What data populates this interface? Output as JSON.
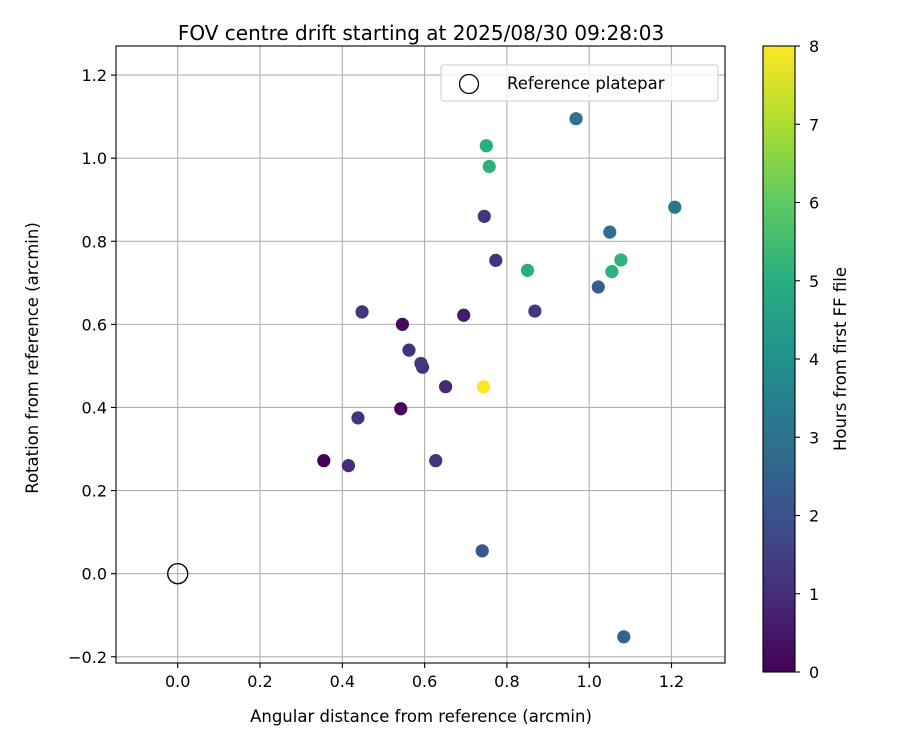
{
  "chart_data": {
    "type": "scatter",
    "title": "FOV centre drift starting at 2025/08/30 09:28:03",
    "xlabel": "Angular distance from reference (arcmin)",
    "ylabel": "Rotation from reference (arcmin)",
    "xlim": [
      -0.15,
      1.33
    ],
    "ylim": [
      -0.215,
      1.27
    ],
    "xticks": [
      0.0,
      0.2,
      0.4,
      0.6,
      0.8,
      1.0,
      1.2
    ],
    "xtick_labels": [
      "0.0",
      "0.2",
      "0.4",
      "0.6",
      "0.8",
      "1.0",
      "1.2"
    ],
    "yticks": [
      -0.2,
      0.0,
      0.2,
      0.4,
      0.6,
      0.8,
      1.0,
      1.2
    ],
    "ytick_labels": [
      "−0.2",
      "0.0",
      "0.2",
      "0.4",
      "0.6",
      "0.8",
      "1.0",
      "1.2"
    ],
    "grid": true,
    "legend": {
      "placement": "top-right",
      "entries": [
        "Reference platepar"
      ]
    },
    "reference_point": {
      "x": 0.0,
      "y": 0.0
    },
    "colorbar": {
      "label": "Hours from first FF file",
      "range": [
        0,
        8
      ],
      "ticks": [
        0,
        1,
        2,
        3,
        4,
        5,
        6,
        7,
        8
      ],
      "tick_labels": [
        "0",
        "1",
        "2",
        "3",
        "4",
        "5",
        "6",
        "7",
        "8"
      ],
      "colormap": "viridis"
    },
    "points": [
      {
        "x": 0.355,
        "y": 0.272,
        "h": 0.0
      },
      {
        "x": 0.542,
        "y": 0.397,
        "h": 0.1
      },
      {
        "x": 0.546,
        "y": 0.6,
        "h": 0.2
      },
      {
        "x": 0.695,
        "y": 0.622,
        "h": 0.6
      },
      {
        "x": 0.415,
        "y": 0.26,
        "h": 1.0
      },
      {
        "x": 0.595,
        "y": 0.497,
        "h": 1.0
      },
      {
        "x": 0.651,
        "y": 0.45,
        "h": 0.9
      },
      {
        "x": 0.438,
        "y": 0.375,
        "h": 1.1
      },
      {
        "x": 0.448,
        "y": 0.63,
        "h": 1.2
      },
      {
        "x": 0.562,
        "y": 0.538,
        "h": 1.1
      },
      {
        "x": 0.591,
        "y": 0.506,
        "h": 1.3
      },
      {
        "x": 0.627,
        "y": 0.272,
        "h": 1.2
      },
      {
        "x": 0.745,
        "y": 0.86,
        "h": 1.2
      },
      {
        "x": 0.773,
        "y": 0.754,
        "h": 1.1
      },
      {
        "x": 0.868,
        "y": 0.632,
        "h": 1.3
      },
      {
        "x": 0.74,
        "y": 0.055,
        "h": 2.2
      },
      {
        "x": 1.022,
        "y": 0.69,
        "h": 2.3
      },
      {
        "x": 1.084,
        "y": -0.152,
        "h": 2.6
      },
      {
        "x": 1.05,
        "y": 0.822,
        "h": 2.8
      },
      {
        "x": 0.968,
        "y": 1.095,
        "h": 3.1
      },
      {
        "x": 1.208,
        "y": 0.882,
        "h": 3.2
      },
      {
        "x": 0.85,
        "y": 0.73,
        "h": 5.0
      },
      {
        "x": 0.75,
        "y": 1.03,
        "h": 5.0
      },
      {
        "x": 0.757,
        "y": 0.98,
        "h": 5.1
      },
      {
        "x": 1.055,
        "y": 0.727,
        "h": 5.1
      },
      {
        "x": 1.077,
        "y": 0.755,
        "h": 5.2
      },
      {
        "x": 0.743,
        "y": 0.45,
        "h": 8.0
      }
    ]
  }
}
